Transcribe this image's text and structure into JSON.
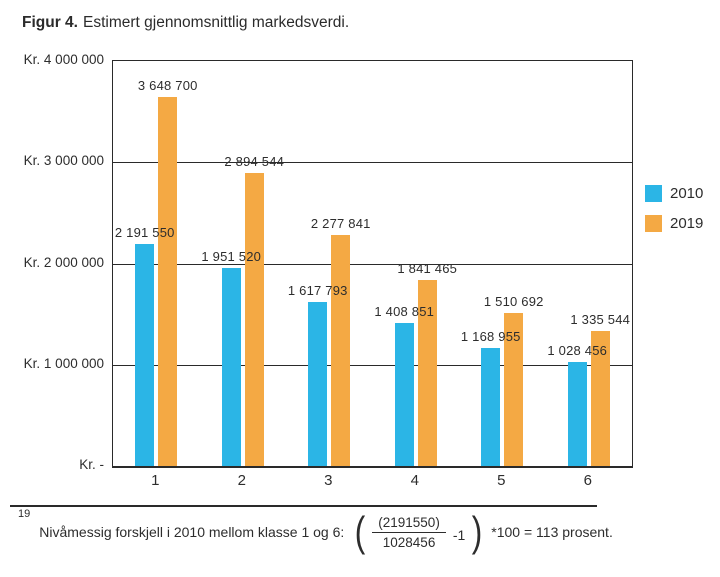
{
  "title": {
    "prefix": "Figur 4.",
    "rest": "Estimert gjennomsnittlig markedsverdi."
  },
  "chart_data": {
    "type": "bar",
    "categories": [
      "1",
      "2",
      "3",
      "4",
      "5",
      "6"
    ],
    "series": [
      {
        "name": "2010",
        "color": "#2BB5E6",
        "values": [
          2191550,
          1951520,
          1617793,
          1408851,
          1168955,
          1028456
        ]
      },
      {
        "name": "2019",
        "color": "#F4A944",
        "values": [
          3648700,
          2894544,
          2277841,
          1841465,
          1510692,
          1335544
        ]
      }
    ],
    "data_labels": true,
    "y_ticks": [
      "Kr. 4 000 000",
      "Kr. 3 000 000",
      "Kr. 2 000 000",
      "Kr. 1 000 000",
      "Kr. -"
    ],
    "ylim": [
      0,
      4000000
    ],
    "grid": true,
    "legend_position": "right",
    "line_color": "#2a2a2a"
  },
  "footnote": {
    "marker": "19",
    "text": "Nivåmessig forskjell i 2010 mellom klasse 1 og 6:",
    "formula": {
      "open_paren": "(",
      "numerator": "(2191550)",
      "denominator": "1028456",
      "minus": "-1",
      "close_paren": ")",
      "suffix": "*100 = 113 prosent."
    }
  }
}
